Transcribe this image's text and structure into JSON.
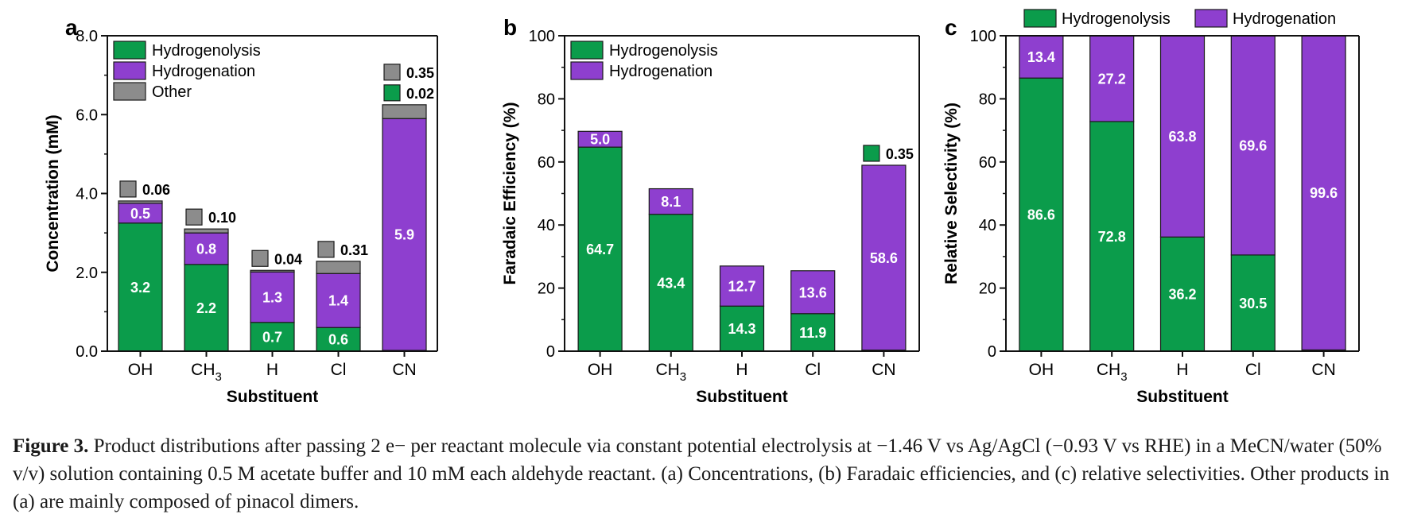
{
  "colors": {
    "hydrogenolysis": "#0b9c4b",
    "hydrogenation": "#8e3fcf",
    "other": "#8c8c8c",
    "axis": "#111111"
  },
  "chart_data": [
    {
      "panel": "a",
      "type": "bar",
      "stacked": true,
      "ylabel": "Concentration (mM)",
      "xlabel": "Substituent",
      "ylim": [
        0,
        8
      ],
      "yticks": [
        "0.0",
        "2.0",
        "4.0",
        "6.0",
        "8.0"
      ],
      "categories": [
        "OH",
        "CH3",
        "H",
        "Cl",
        "CN"
      ],
      "legend_position": "top-left",
      "series": [
        {
          "name": "Hydrogenolysis",
          "color_key": "hydrogenolysis",
          "values": [
            3.25,
            2.2,
            0.73,
            0.6,
            0.02
          ],
          "labels": [
            "3.2",
            "2.2",
            "0.7",
            "0.6",
            ""
          ]
        },
        {
          "name": "Hydrogenation",
          "color_key": "hydrogenation",
          "values": [
            0.5,
            0.8,
            1.28,
            1.37,
            5.88
          ],
          "labels": [
            "0.5",
            "0.8",
            "1.3",
            "1.4",
            "5.9"
          ]
        },
        {
          "name": "Other",
          "color_key": "other",
          "values": [
            0.06,
            0.1,
            0.04,
            0.31,
            0.35
          ],
          "labels": [
            "",
            "",
            "",
            "",
            ""
          ]
        }
      ],
      "callouts": [
        {
          "category": "OH",
          "text": "0.06",
          "swatch": "other"
        },
        {
          "category": "CH3",
          "text": "0.10",
          "swatch": "other"
        },
        {
          "category": "H",
          "text": "0.04",
          "swatch": "other"
        },
        {
          "category": "Cl",
          "text": "0.31",
          "swatch": "other"
        },
        {
          "category": "CN",
          "text": "0.35",
          "swatch": "other"
        },
        {
          "category": "CN",
          "text": "0.02",
          "swatch": "hydrogenolysis"
        }
      ]
    },
    {
      "panel": "b",
      "type": "bar",
      "stacked": true,
      "ylabel": "Faradaic Efficiency (%)",
      "xlabel": "Substituent",
      "ylim": [
        0,
        100
      ],
      "yticks": [
        "0",
        "20",
        "40",
        "60",
        "80",
        "100"
      ],
      "categories": [
        "OH",
        "CH3",
        "H",
        "Cl",
        "CN"
      ],
      "legend_position": "top-left",
      "series": [
        {
          "name": "Hydrogenolysis",
          "color_key": "hydrogenolysis",
          "values": [
            64.7,
            43.4,
            14.3,
            11.9,
            0.35
          ],
          "labels": [
            "64.7",
            "43.4",
            "14.3",
            "11.9",
            ""
          ]
        },
        {
          "name": "Hydrogenation",
          "color_key": "hydrogenation",
          "values": [
            5.0,
            8.1,
            12.7,
            13.6,
            58.6
          ],
          "labels": [
            "5.0",
            "8.1",
            "12.7",
            "13.6",
            "58.6"
          ]
        }
      ],
      "callouts": [
        {
          "category": "CN",
          "text": "0.35",
          "swatch": "hydrogenolysis"
        }
      ]
    },
    {
      "panel": "c",
      "type": "bar",
      "stacked": true,
      "ylabel": "Relative Selectivity (%)",
      "xlabel": "Substituent",
      "ylim": [
        0,
        100
      ],
      "yticks": [
        "0",
        "20",
        "40",
        "60",
        "80",
        "100"
      ],
      "categories": [
        "OH",
        "CH3",
        "H",
        "Cl",
        "CN"
      ],
      "legend_position": "top (outside)",
      "series": [
        {
          "name": "Hydrogenolysis",
          "color_key": "hydrogenolysis",
          "values": [
            86.6,
            72.8,
            36.2,
            30.5,
            0.4
          ],
          "labels": [
            "86.6",
            "72.8",
            "36.2",
            "30.5",
            ""
          ]
        },
        {
          "name": "Hydrogenation",
          "color_key": "hydrogenation",
          "values": [
            13.4,
            27.2,
            63.8,
            69.6,
            99.6
          ],
          "labels": [
            "13.4",
            "27.2",
            "63.8",
            "69.6",
            "99.6"
          ]
        }
      ],
      "callouts": []
    }
  ],
  "caption": {
    "label": "Figure 3.",
    "text": " Product distributions after passing 2 e− per reactant molecule via constant potential electrolysis at −1.46 V vs Ag/AgCl (−0.93 V vs RHE) in a MeCN/water (50% v/v) solution containing 0.5 M acetate buffer and 10 mM each aldehyde reactant. (a) Concentrations, (b) Faradaic efficiencies, and (c) relative selectivities. Other products in (a) are mainly composed of pinacol dimers."
  }
}
